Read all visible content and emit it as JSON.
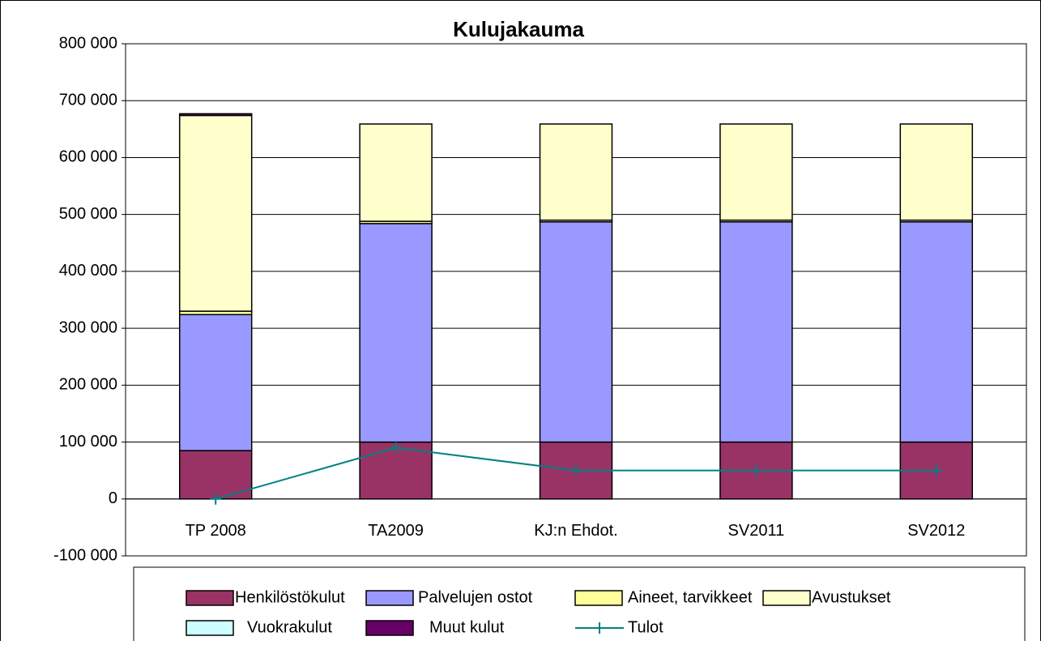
{
  "chart_data": {
    "type": "bar",
    "stacked": true,
    "title": "Kulujakauma",
    "categories": [
      "TP 2008",
      "TA2009",
      "KJ:n Ehdot.",
      "SV2011",
      "SV2012"
    ],
    "series": [
      {
        "name": "Henkilöstökulut",
        "color": "#993366",
        "values": [
          85000,
          100000,
          100000,
          100000,
          100000
        ]
      },
      {
        "name": "Palvelujen ostot",
        "color": "#9999ff",
        "values": [
          239000,
          384000,
          387000,
          387000,
          387000
        ]
      },
      {
        "name": "Aineet, tarvikkeet",
        "color": "#ffff99",
        "values": [
          6000,
          4000,
          3000,
          3000,
          3000
        ]
      },
      {
        "name": "Avustukset",
        "color": "#ffffcc",
        "values": [
          344000,
          171000,
          169000,
          169000,
          169000
        ]
      },
      {
        "name": "Vuokrakulut",
        "color": "#ccffff",
        "values": [
          0,
          0,
          0,
          0,
          0
        ]
      },
      {
        "name": "Muut kulut",
        "color": "#660066",
        "values": [
          3000,
          0,
          0,
          0,
          0
        ]
      },
      {
        "name": "Tulot",
        "color": "#008080",
        "type": "line",
        "values": [
          0,
          90000,
          50000,
          50000,
          50000
        ]
      }
    ],
    "ylim": [
      -100000,
      800000
    ],
    "yticks": [
      {
        "value": -100000,
        "label": "-100 000"
      },
      0,
      {
        "value": 100000,
        "label": "100 000"
      },
      {
        "value": 200000,
        "label": "200 000"
      },
      {
        "value": 300000,
        "label": "300 000"
      },
      {
        "value": 400000,
        "label": "400 000"
      },
      {
        "value": 500000,
        "label": "500 000"
      },
      {
        "value": 600000,
        "label": "600 000"
      },
      {
        "value": 700000,
        "label": "700 000"
      },
      {
        "value": 800000,
        "label": "800 000"
      }
    ],
    "grid": true,
    "legend": "bottom"
  }
}
